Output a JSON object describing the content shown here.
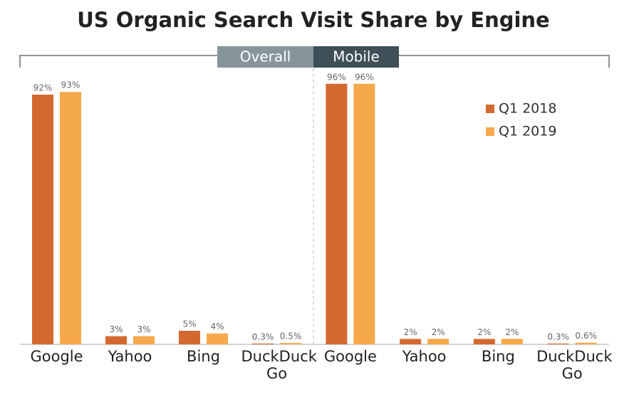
{
  "title": "US Organic Search Visit Share by Engine",
  "chart_data": [
    {
      "type": "bar",
      "label": "Overall",
      "label_color": "#86959b",
      "categories": [
        "Google",
        "Yahoo",
        "Bing",
        "DuckDuck Go"
      ],
      "series": [
        {
          "name": "Q1 2018",
          "color": "#d4692f",
          "values": [
            92,
            3,
            5,
            0.3
          ],
          "value_labels": [
            "92%",
            "3%",
            "5%",
            "0.3%"
          ]
        },
        {
          "name": "Q1 2019",
          "color": "#f6a94a",
          "values": [
            93,
            3,
            4,
            0.5
          ],
          "value_labels": [
            "93%",
            "3%",
            "4%",
            "0.5%"
          ]
        }
      ]
    },
    {
      "type": "bar",
      "label": "Mobile",
      "label_color": "#3e4f58",
      "legend": "upper right",
      "categories": [
        "Google",
        "Yahoo",
        "Bing",
        "DuckDuck Go"
      ],
      "series": [
        {
          "name": "Q1 2018",
          "color": "#d4692f",
          "values": [
            96,
            2,
            2,
            0.3
          ],
          "value_labels": [
            "96%",
            "2%",
            "2%",
            "0.3%"
          ]
        },
        {
          "name": "Q1 2019",
          "color": "#f6a94a",
          "values": [
            96,
            2,
            2,
            0.6
          ],
          "value_labels": [
            "96%",
            "2%",
            "2%",
            "0.6%"
          ]
        }
      ]
    }
  ]
}
